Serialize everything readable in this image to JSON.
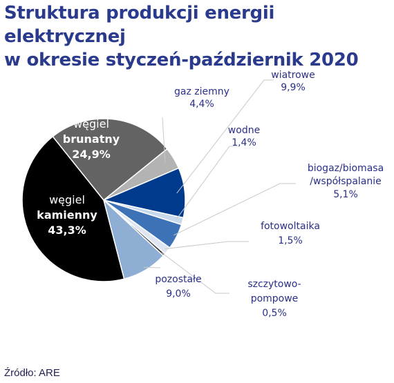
{
  "title": {
    "line1": "Struktura produkcji energii elektrycznej",
    "line2": "w okresie styczeń-październik 2020"
  },
  "source": "Źródło: ARE",
  "colors": {
    "title": "#2a3a8c",
    "label_text": "#2a2f88",
    "leader_line": "#c8c8c8"
  },
  "chart_data": {
    "type": "pie",
    "title": "Struktura produkcji energii elektrycznej w okresie styczeń-październik 2020",
    "slices": [
      {
        "key": "gaz",
        "label_lines": [
          "gaz ziemny",
          "4,4%"
        ],
        "value": 4.4,
        "color": "#b3b3b3"
      },
      {
        "key": "wiatrowe",
        "label_lines": [
          "wiatrowe",
          "9,9%"
        ],
        "value": 9.9,
        "color": "#003a8c"
      },
      {
        "key": "wodne",
        "label_lines": [
          "wodne",
          "1,4%"
        ],
        "value": 1.4,
        "color": "#c9d9ec"
      },
      {
        "key": "biogaz",
        "label_lines": [
          "biogaz/biomasa",
          "/współspalanie",
          "5,1%"
        ],
        "value": 5.1,
        "color": "#3d72b6"
      },
      {
        "key": "fotowoltaika",
        "label_lines": [
          "fotowoltaika",
          "1,5%"
        ],
        "value": 1.5,
        "color": "#dde6f2"
      },
      {
        "key": "szczytowo",
        "label_lines": [
          "szczytowo-",
          "pompowe",
          "0,5%"
        ],
        "value": 0.5,
        "color": "#3c3c3c"
      },
      {
        "key": "pozostale",
        "label_lines": [
          "pozostałe",
          "9,0%"
        ],
        "value": 9.0,
        "color": "#8faed4"
      },
      {
        "key": "kamienny",
        "label_lines": [
          "węgiel",
          "kamienny",
          "43,3%"
        ],
        "value": 43.3,
        "color": "#000000"
      },
      {
        "key": "brunatny",
        "label_lines": [
          "węgiel",
          "brunatny",
          "24,9%"
        ],
        "value": 24.9,
        "color": "#636363"
      }
    ]
  }
}
